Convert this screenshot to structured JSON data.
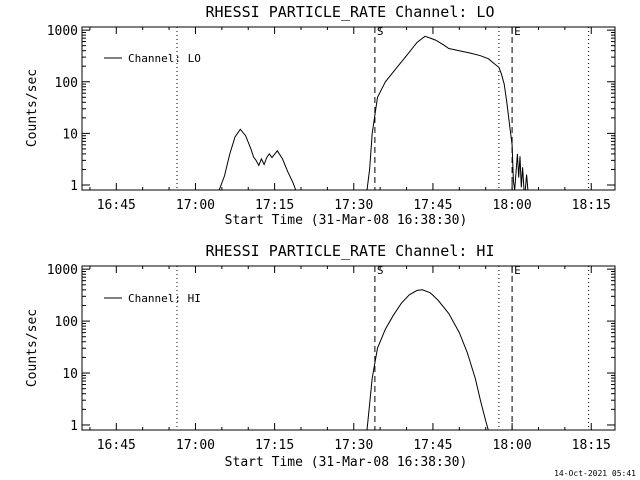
{
  "footer": {
    "timestamp": "14-Oct-2021 05:41"
  },
  "chart_data": [
    {
      "type": "line",
      "title": "RHESSI PARTICLE_RATE Channel: LO",
      "xlabel": "Start Time (31-Mar-08 16:38:30)",
      "ylabel": "Counts/sec",
      "xlim": [
        "16:38:30",
        "18:19:30"
      ],
      "ylim": [
        0.8,
        1150
      ],
      "yscale": "log",
      "x_ticks": [
        "16:45",
        "17:00",
        "17:15",
        "17:30",
        "17:45",
        "18:00",
        "18:15"
      ],
      "y_ticks": [
        {
          "value": 1000,
          "label": "1000"
        },
        {
          "value": 100,
          "label": "100"
        },
        {
          "value": 10,
          "label": "10"
        },
        {
          "value": 1,
          "label": "1"
        }
      ],
      "legend": {
        "placement": "top-left"
      },
      "markers": [
        {
          "time": "16:56:30",
          "style": "dotted",
          "label": ""
        },
        {
          "time": "17:34:00",
          "style": "dashed",
          "label": "S"
        },
        {
          "time": "17:57:30",
          "style": "dotted",
          "label": ""
        },
        {
          "time": "18:00:00",
          "style": "dashed",
          "label": "E"
        },
        {
          "time": "18:14:30",
          "style": "dotted",
          "label": ""
        }
      ],
      "series": [
        {
          "name": "Channel: LO",
          "segments": [
            [
              [
                "17:04:30",
                0.8
              ],
              [
                "17:05:30",
                1.5
              ],
              [
                "17:06:30",
                4
              ],
              [
                "17:07:30",
                8.5
              ],
              [
                "17:08:30",
                12
              ],
              [
                "17:09:30",
                9
              ],
              [
                "17:10:30",
                5
              ],
              [
                "17:11:00",
                3.5
              ],
              [
                "17:11:30",
                3
              ],
              [
                "17:12:00",
                2.4
              ],
              [
                "17:12:30",
                3.2
              ],
              [
                "17:13:00",
                2.5
              ],
              [
                "17:13:30",
                3.4
              ],
              [
                "17:14:00",
                4
              ],
              [
                "17:14:30",
                3.4
              ],
              [
                "17:15:30",
                4.6
              ],
              [
                "17:16:30",
                3.2
              ],
              [
                "17:17:30",
                1.8
              ],
              [
                "17:18:30",
                1.1
              ],
              [
                "17:19:00",
                0.8
              ]
            ],
            [
              [
                "17:32:30",
                0.8
              ],
              [
                "17:33:00",
                2
              ],
              [
                "17:33:30",
                10
              ],
              [
                "17:34:30",
                50
              ],
              [
                "17:36:00",
                100
              ],
              [
                "17:38:00",
                180
              ],
              [
                "17:40:00",
                320
              ],
              [
                "17:42:00",
                580
              ],
              [
                "17:43:30",
                760
              ],
              [
                "17:44:30",
                700
              ],
              [
                "17:45:30",
                640
              ],
              [
                "17:47:00",
                520
              ],
              [
                "17:48:00",
                440
              ],
              [
                "17:50:00",
                400
              ],
              [
                "17:52:00",
                360
              ],
              [
                "17:54:00",
                320
              ],
              [
                "17:55:30",
                280
              ],
              [
                "17:56:30",
                230
              ],
              [
                "17:57:30",
                190
              ],
              [
                "17:58:00",
                140
              ],
              [
                "17:58:30",
                90
              ],
              [
                "17:59:00",
                40
              ],
              [
                "17:59:30",
                15
              ],
              [
                "18:00:00",
                6
              ],
              [
                "18:00:15",
                1.2
              ],
              [
                "18:00:30",
                0.8
              ]
            ],
            [
              [
                "18:00:30",
                0.8
              ],
              [
                "18:01:00",
                4
              ],
              [
                "18:01:15",
                1.4
              ],
              [
                "18:01:30",
                3.6
              ],
              [
                "18:01:45",
                0.9
              ],
              [
                "18:02:00",
                2.2
              ],
              [
                "18:02:15",
                0.8
              ]
            ],
            [
              [
                "18:02:30",
                0.8
              ],
              [
                "18:02:45",
                1.6
              ],
              [
                "18:03:00",
                0.8
              ]
            ]
          ]
        }
      ]
    },
    {
      "type": "line",
      "title": "RHESSI PARTICLE_RATE Channel: HI",
      "xlabel": "Start Time (31-Mar-08 16:38:30)",
      "ylabel": "Counts/sec",
      "xlim": [
        "16:38:30",
        "18:19:30"
      ],
      "ylim": [
        0.8,
        1150
      ],
      "yscale": "log",
      "x_ticks": [
        "16:45",
        "17:00",
        "17:15",
        "17:30",
        "17:45",
        "18:00",
        "18:15"
      ],
      "y_ticks": [
        {
          "value": 1000,
          "label": "1000"
        },
        {
          "value": 100,
          "label": "100"
        },
        {
          "value": 10,
          "label": "10"
        },
        {
          "value": 1,
          "label": "1"
        }
      ],
      "legend": {
        "placement": "top-left"
      },
      "markers": [
        {
          "time": "16:56:30",
          "style": "dotted",
          "label": ""
        },
        {
          "time": "17:34:00",
          "style": "dashed",
          "label": "S"
        },
        {
          "time": "17:57:30",
          "style": "dotted",
          "label": ""
        },
        {
          "time": "18:00:00",
          "style": "dashed",
          "label": "E"
        },
        {
          "time": "18:14:30",
          "style": "dotted",
          "label": ""
        }
      ],
      "series": [
        {
          "name": "Channel: HI",
          "segments": [
            [
              [
                "17:32:30",
                0.8
              ],
              [
                "17:33:00",
                2.5
              ],
              [
                "17:33:30",
                8
              ],
              [
                "17:34:30",
                30
              ],
              [
                "17:36:00",
                70
              ],
              [
                "17:37:30",
                130
              ],
              [
                "17:39:00",
                220
              ],
              [
                "17:40:30",
                320
              ],
              [
                "17:42:00",
                390
              ],
              [
                "17:43:00",
                400
              ],
              [
                "17:44:30",
                350
              ],
              [
                "17:46:00",
                250
              ],
              [
                "17:48:00",
                140
              ],
              [
                "17:50:00",
                60
              ],
              [
                "17:51:30",
                25
              ],
              [
                "17:53:00",
                8
              ],
              [
                "17:54:00",
                3
              ],
              [
                "17:55:00",
                1.2
              ],
              [
                "17:55:30",
                0.8
              ]
            ]
          ]
        }
      ]
    }
  ]
}
